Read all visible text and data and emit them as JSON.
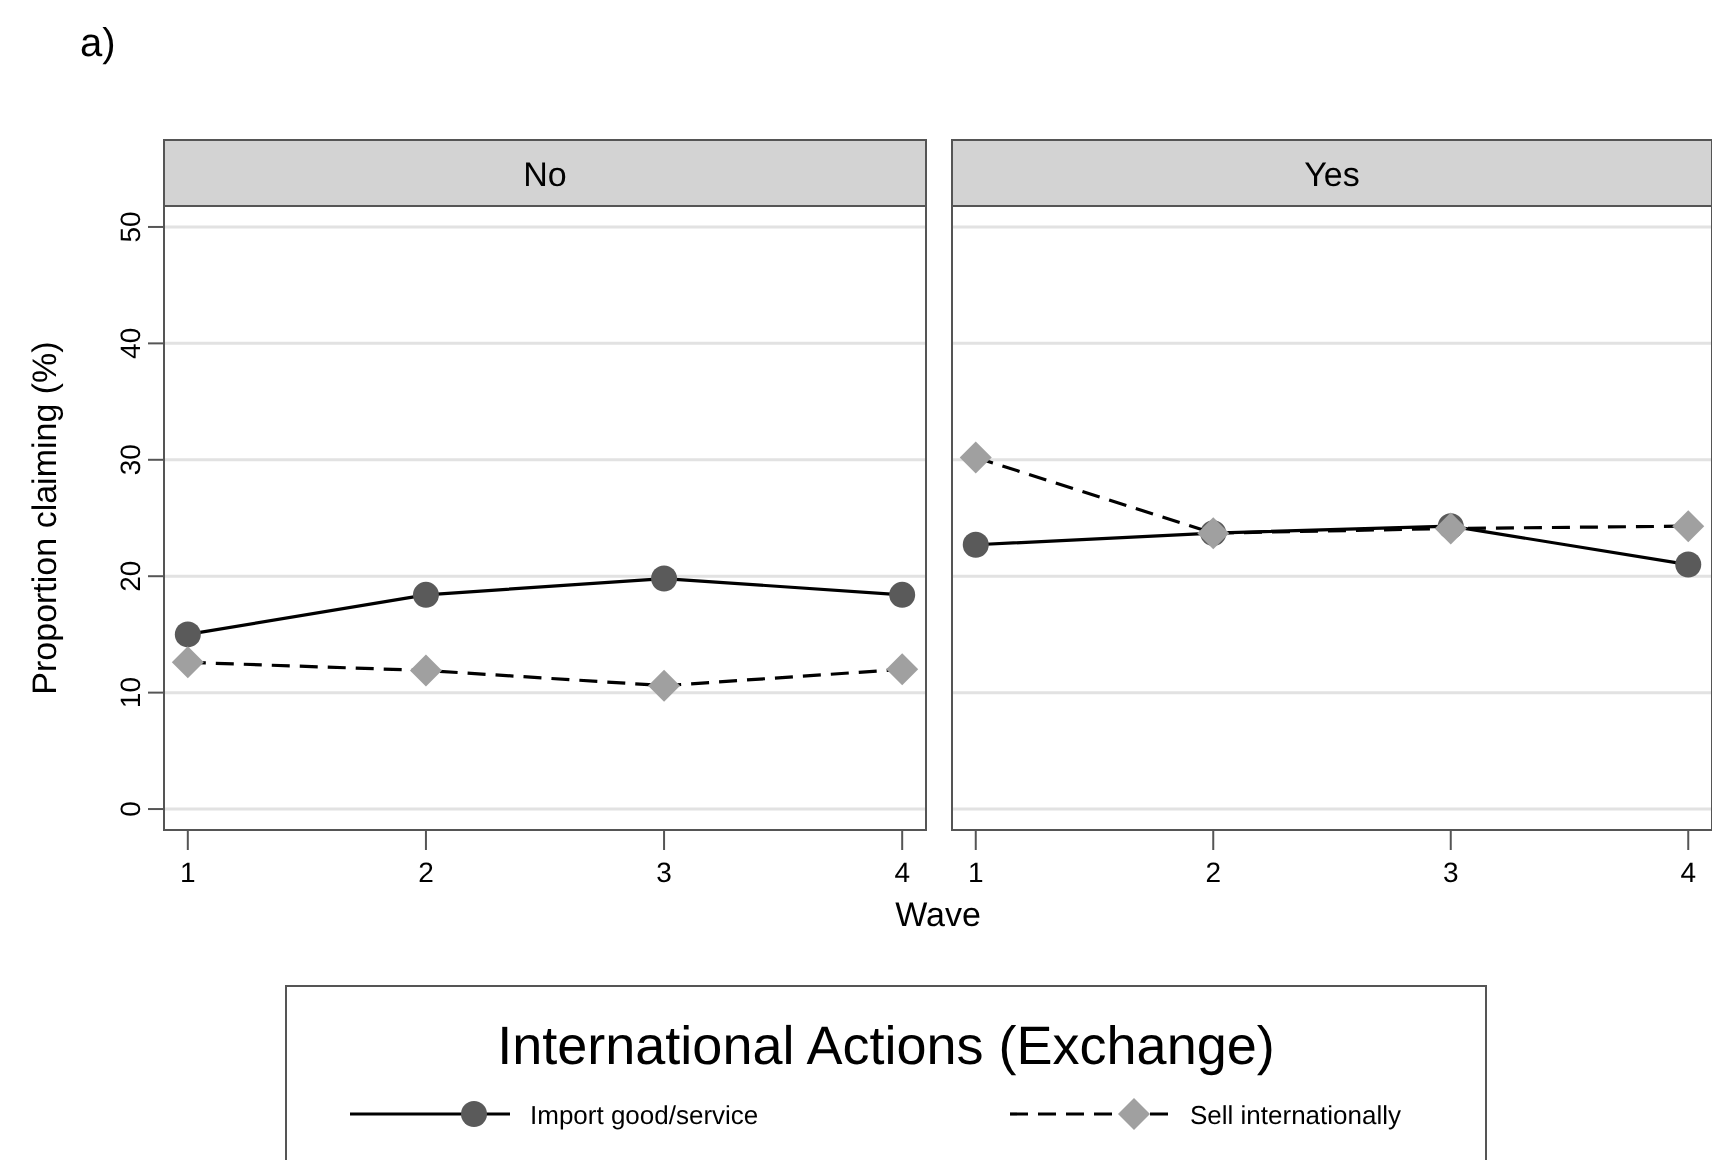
{
  "chart_data": [
    {
      "type": "line",
      "title": "No",
      "annotations": [
        "a)"
      ],
      "xlabel": "Wave",
      "ylabel": "Proportion claiming (%)",
      "legend_title": "International Actions (Exchange)",
      "legend": "bottom",
      "grid": "y",
      "x": [
        1,
        2,
        3,
        4
      ],
      "xlim": [
        0.9,
        4.1
      ],
      "xticks": [
        1,
        2,
        3,
        4
      ],
      "ylim": [
        -1.8,
        51.8
      ],
      "yticks": [
        0,
        10,
        20,
        30,
        40,
        50
      ],
      "series": [
        {
          "name": "Import good/service",
          "color": "#5a5a5a",
          "marker": "circle",
          "line_style": "solid",
          "values": [
            15.0,
            18.4,
            19.8,
            18.4
          ]
        },
        {
          "name": "Sell internationally",
          "color": "#a0a0a0",
          "marker": "diamond",
          "line_style": "dashed",
          "values": [
            12.6,
            11.9,
            10.6,
            12.0
          ]
        }
      ]
    },
    {
      "type": "line",
      "title": "Yes",
      "tick_labels": "x",
      "grid": "y",
      "x": [
        1,
        2,
        3,
        4
      ],
      "xlim": [
        0.9,
        4.1
      ],
      "xticks": [
        1,
        2,
        3,
        4
      ],
      "ylim": [
        -1.8,
        51.8
      ],
      "yticks": [
        0,
        10,
        20,
        30,
        40,
        50
      ],
      "series": [
        {
          "color": "#5a5a5a",
          "marker": "circle",
          "line_style": "solid",
          "values": [
            22.7,
            23.7,
            24.3,
            21.0
          ]
        },
        {
          "color": "#a0a0a0",
          "marker": "diamond",
          "line_style": "dashed",
          "values": [
            30.2,
            23.7,
            24.1,
            24.3
          ]
        }
      ]
    }
  ]
}
